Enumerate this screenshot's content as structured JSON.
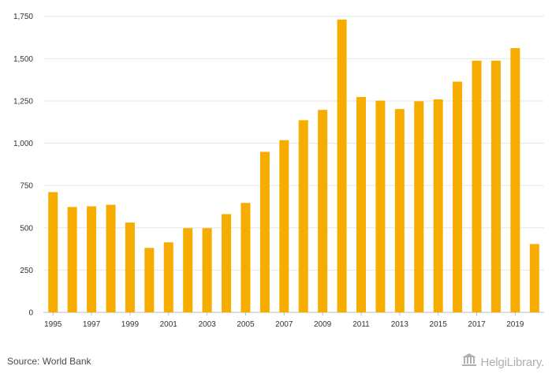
{
  "chart_data": {
    "type": "bar",
    "categories": [
      "1995",
      "1996",
      "1997",
      "1998",
      "1999",
      "2000",
      "2001",
      "2002",
      "2003",
      "2004",
      "2005",
      "2006",
      "2007",
      "2008",
      "2009",
      "2010",
      "2011",
      "2012",
      "2013",
      "2014",
      "2015",
      "2016",
      "2017",
      "2018",
      "2019",
      "2020"
    ],
    "x_tick_labels": [
      "1995",
      "1997",
      "1999",
      "2001",
      "2003",
      "2005",
      "2007",
      "2009",
      "2011",
      "2013",
      "2015",
      "2017",
      "2019"
    ],
    "values": [
      711,
      623,
      627,
      636,
      531,
      381,
      414,
      498,
      498,
      581,
      647,
      949,
      1018,
      1136,
      1197,
      1731,
      1273,
      1252,
      1202,
      1248,
      1259,
      1364,
      1488,
      1488,
      1562,
      404
    ],
    "y_ticks": [
      0,
      250,
      500,
      750,
      1000,
      1250,
      1500,
      1750
    ],
    "y_tick_labels": [
      "0",
      "250",
      "500",
      "750",
      "1,000",
      "1,250",
      "1,500",
      "1,750"
    ],
    "ylim": [
      0,
      1800
    ],
    "title": "",
    "xlabel": "",
    "ylabel": "",
    "grid": true,
    "bar_color": "#f6ad00",
    "grid_color": "#e6e6e6"
  },
  "footer": {
    "source": "Source: World Bank",
    "brand": "HelgiLibrary."
  },
  "colors": {
    "brand_gray": "#b0b0b0",
    "text": "#333333"
  },
  "icons": {
    "brand_logo": "library-columns-icon"
  }
}
